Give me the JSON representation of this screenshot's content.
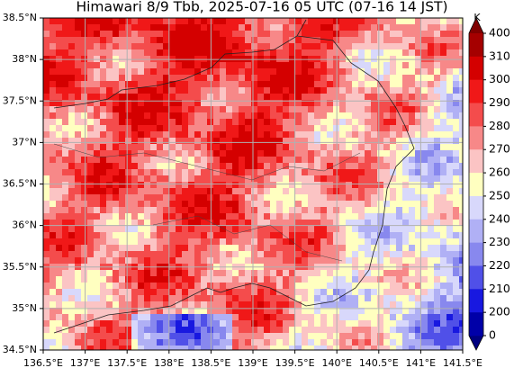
{
  "title": "Himawari 8/9 Tbb, 2025-07-16 05 UTC (07-16 14 JST)",
  "xlim": [
    136.5,
    141.5
  ],
  "ylim": [
    34.5,
    38.5
  ],
  "xticks": [
    {
      "value": 136.5,
      "label": "136.5°E"
    },
    {
      "value": 137,
      "label": "137°E"
    },
    {
      "value": 137.5,
      "label": "137.5°E"
    },
    {
      "value": 138,
      "label": "138°E"
    },
    {
      "value": 138.5,
      "label": "138.5°E"
    },
    {
      "value": 139,
      "label": "139°E"
    },
    {
      "value": 139.5,
      "label": "139.5°E"
    },
    {
      "value": 140,
      "label": "140°E"
    },
    {
      "value": 140.5,
      "label": "140.5°E"
    },
    {
      "value": 141,
      "label": "141°E"
    },
    {
      "value": 141.5,
      "label": "141.5°E"
    }
  ],
  "yticks": [
    {
      "value": 34.5,
      "label": "34.5°N"
    },
    {
      "value": 35,
      "label": "35°N"
    },
    {
      "value": 35.5,
      "label": "35.5°N"
    },
    {
      "value": 36,
      "label": "36°N"
    },
    {
      "value": 36.5,
      "label": "36.5°N"
    },
    {
      "value": 37,
      "label": "37°N"
    },
    {
      "value": 37.5,
      "label": "37.5°N"
    },
    {
      "value": 38,
      "label": "38°N"
    },
    {
      "value": 38.5,
      "label": "38.5°N"
    }
  ],
  "grid": true,
  "colorbar": {
    "label": "K",
    "ticks": [
      400,
      310,
      300,
      290,
      280,
      270,
      260,
      250,
      240,
      230,
      220,
      210,
      200,
      0
    ],
    "colors": [
      "#a50000",
      "#d40000",
      "#f01818",
      "#f44c4c",
      "#f78888",
      "#fbc4c4",
      "#ffffc0",
      "#d8d8fb",
      "#b0b0f5",
      "#8888ee",
      "#5050e8",
      "#1818e0",
      "#0000a8"
    ],
    "over": "#800000",
    "under": "#000080"
  }
}
